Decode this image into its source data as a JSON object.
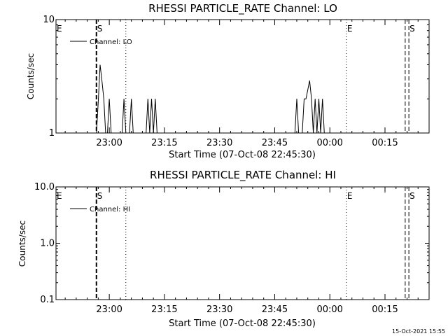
{
  "chart_data": [
    {
      "type": "line",
      "title": "RHESSI PARTICLE_RATE Channel: LO",
      "xlabel": "Start Time (07-Oct-08 22:45:30)",
      "ylabel": "Counts/sec",
      "xlim": [
        "22:45:30",
        "00:27:00"
      ],
      "ylim": [
        1,
        10
      ],
      "yscale": "log",
      "x_ticks": [
        "23:00",
        "23:15",
        "23:30",
        "23:45",
        "00:00",
        "00:15"
      ],
      "y_ticks": [
        "1",
        "10"
      ],
      "legend": {
        "label": "Channel: LO",
        "position": "top-left"
      },
      "markers": [
        {
          "label": "E",
          "time": "22:45:30",
          "style": "none"
        },
        {
          "label": "S",
          "time": "22:56:30",
          "style": "dashed-bold"
        },
        {
          "label": "",
          "time": "23:04:30",
          "style": "dotted"
        },
        {
          "label": "E",
          "time": "00:04:30",
          "style": "dotted"
        },
        {
          "label": "",
          "time": "00:20:30",
          "style": "dashed"
        },
        {
          "label": "S",
          "time": "00:21:30",
          "style": "dashed"
        }
      ],
      "series": [
        {
          "name": "Channel: LO",
          "points": [
            [
              "22:56:30",
              1.0
            ],
            [
              "22:57:00",
              1.9
            ],
            [
              "22:57:30",
              4.0
            ],
            [
              "22:58:00",
              2.9
            ],
            [
              "22:58:30",
              2.0
            ],
            [
              "22:59:00",
              1.0
            ],
            [
              "22:59:30",
              1.0
            ],
            [
              "23:00:00",
              2.0
            ],
            [
              "23:00:30",
              1.0
            ],
            [
              "23:03:30",
              1.0
            ],
            [
              "23:04:00",
              2.0
            ],
            [
              "23:04:30",
              1.0
            ],
            [
              "23:05:30",
              1.0
            ],
            [
              "23:06:00",
              2.0
            ],
            [
              "23:06:30",
              1.0
            ],
            [
              "23:10:00",
              1.0
            ],
            [
              "23:10:30",
              2.0
            ],
            [
              "23:11:00",
              1.0
            ],
            [
              "23:11:30",
              2.0
            ],
            [
              "23:12:00",
              1.0
            ],
            [
              "23:12:30",
              2.0
            ],
            [
              "23:13:00",
              1.0
            ],
            [
              "23:50:30",
              1.0
            ],
            [
              "23:51:00",
              2.0
            ],
            [
              "23:51:30",
              1.0
            ],
            [
              "23:52:30",
              1.0
            ],
            [
              "23:53:00",
              2.0
            ],
            [
              "23:53:30",
              2.0
            ],
            [
              "23:54:00",
              2.4
            ],
            [
              "23:54:30",
              2.9
            ],
            [
              "23:55:00",
              2.0
            ],
            [
              "23:55:30",
              1.0
            ],
            [
              "23:56:00",
              2.0
            ],
            [
              "23:56:30",
              1.0
            ],
            [
              "23:57:00",
              2.0
            ],
            [
              "23:57:30",
              1.0
            ],
            [
              "23:58:00",
              2.0
            ],
            [
              "23:58:30",
              1.0
            ]
          ]
        }
      ]
    },
    {
      "type": "line",
      "title": "RHESSI PARTICLE_RATE Channel: HI",
      "xlabel": "Start Time (07-Oct-08 22:45:30)",
      "ylabel": "Counts/sec",
      "xlim": [
        "22:45:30",
        "00:27:00"
      ],
      "ylim": [
        0.1,
        10
      ],
      "yscale": "log",
      "x_ticks": [
        "23:00",
        "23:15",
        "23:30",
        "23:45",
        "00:00",
        "00:15"
      ],
      "y_ticks": [
        "0.1",
        "1.0",
        "10.0"
      ],
      "legend": {
        "label": "Channel: HI",
        "position": "top-left"
      },
      "markers": [
        {
          "label": "E",
          "time": "22:45:30",
          "style": "none"
        },
        {
          "label": "S",
          "time": "22:56:30",
          "style": "dashed-bold"
        },
        {
          "label": "",
          "time": "23:04:30",
          "style": "dotted"
        },
        {
          "label": "E",
          "time": "00:04:30",
          "style": "dotted"
        },
        {
          "label": "",
          "time": "00:20:30",
          "style": "dashed"
        },
        {
          "label": "S",
          "time": "00:21:30",
          "style": "dashed"
        }
      ],
      "series": [
        {
          "name": "Channel: HI",
          "points": []
        }
      ]
    }
  ],
  "footer": {
    "timestamp": "15-Oct-2021 15:55"
  }
}
